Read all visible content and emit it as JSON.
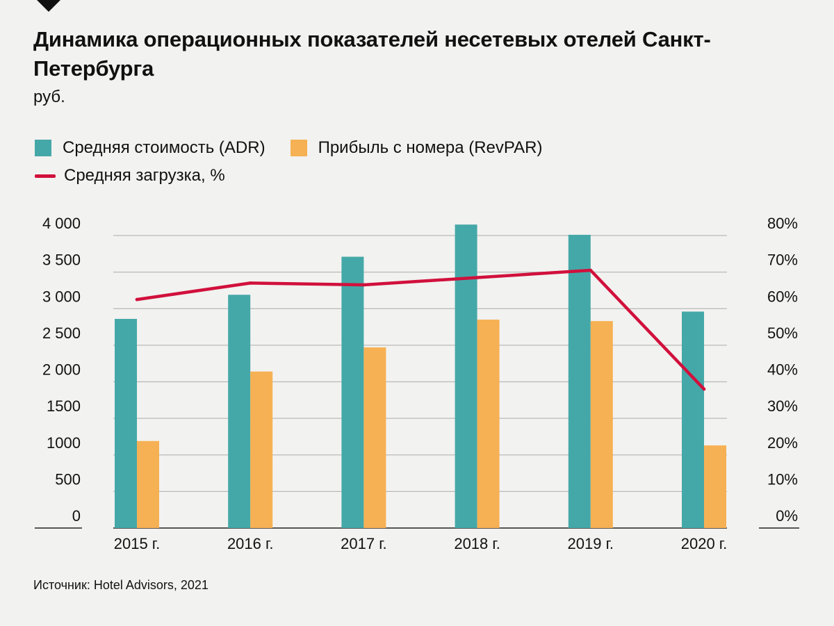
{
  "title": "Динамика операционных показателей несетевых отелей Санкт-Петербурга",
  "unit_label": "руб.",
  "source": "Источник: Hotel Advisors, 2021",
  "legend": {
    "adr": "Средняя стоимость (ADR)",
    "revpar": "Прибыль с номера (RevPAR)",
    "occupancy": "Средняя загрузка, %"
  },
  "colors": {
    "adr": "#45a8a8",
    "revpar": "#f6b154",
    "occupancy": "#d1103c",
    "grid": "#b9b9b9",
    "background": "#f2f2f0"
  },
  "icons": {
    "corner": "diamond-marker-icon"
  },
  "chart_data": {
    "type": "bar",
    "categories": [
      "2015 г.",
      "2016 г.",
      "2017 г.",
      "2018 г.",
      "2019 г.",
      "2020 г."
    ],
    "series": [
      {
        "name": "Средняя стоимость (ADR)",
        "type": "bar",
        "axis": "left",
        "values": [
          2860,
          3190,
          3710,
          4150,
          4010,
          2960
        ]
      },
      {
        "name": "Прибыль с номера (RevPAR)",
        "type": "bar",
        "axis": "left",
        "values": [
          1190,
          2140,
          2470,
          2850,
          2830,
          1130
        ]
      },
      {
        "name": "Средняя загрузка, %",
        "type": "line",
        "axis": "right",
        "values": [
          62.5,
          67,
          66.5,
          68.5,
          70.5,
          38
        ]
      }
    ],
    "y_left": {
      "ticks": [
        "4 000",
        "3 500",
        "3 000",
        "2 500",
        "2 000",
        "1500",
        "1000",
        "500",
        "0"
      ],
      "range": [
        0,
        4000
      ]
    },
    "y_right": {
      "ticks": [
        "80%",
        "70%",
        "60%",
        "50%",
        "40%",
        "30%",
        "20%",
        "10%",
        "0%"
      ],
      "range": [
        0,
        80
      ]
    },
    "grid": true,
    "legend_position": "top-left"
  }
}
